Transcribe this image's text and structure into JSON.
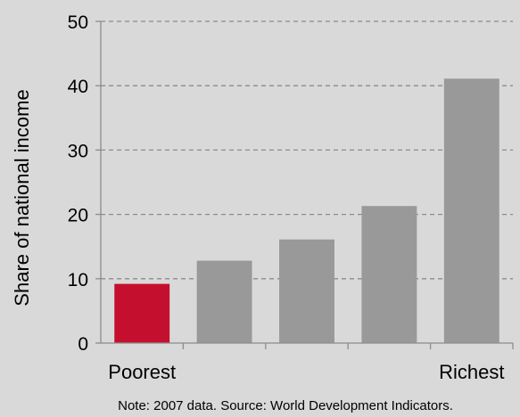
{
  "chart_data": {
    "type": "bar",
    "categories": [
      "Poorest",
      "",
      "",
      "",
      "Richest"
    ],
    "values": [
      9.2,
      12.8,
      16.1,
      21.3,
      41.1
    ],
    "ylabel": "Share of national income",
    "ylim": [
      0,
      50
    ],
    "yticks": [
      0,
      10,
      20,
      30,
      40,
      50
    ],
    "grid": true,
    "highlight_index": 0,
    "colors": {
      "highlight": "#c4102e",
      "bar": "#999999",
      "grid": "#8c8c8c",
      "axis": "#8c8c8c",
      "background": "#d9d9d9",
      "text": "#000000"
    },
    "note": "Note: 2007 data. Source: World Development Indicators."
  }
}
